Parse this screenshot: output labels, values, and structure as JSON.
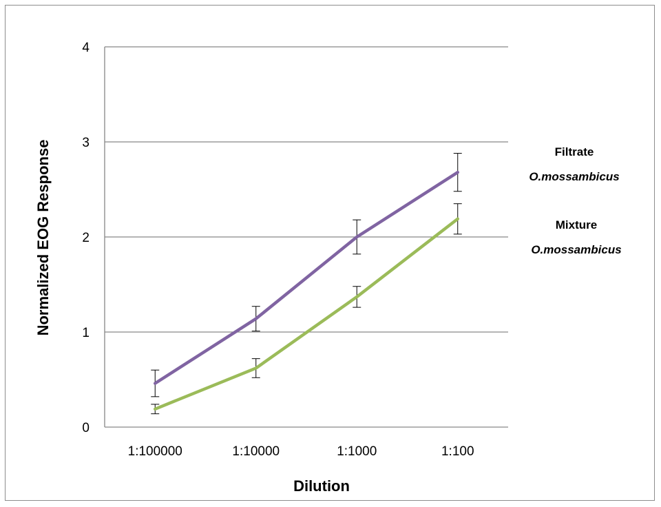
{
  "chart_data": {
    "type": "line",
    "title": "",
    "xlabel": "Dilution",
    "ylabel": "Normalized EOG Response",
    "categories": [
      "1:100000",
      "1:10000",
      "1:1000",
      "1:100"
    ],
    "ylim": [
      0,
      4
    ],
    "yticks": [
      "0",
      "1",
      "2",
      "3",
      "4"
    ],
    "grid": true,
    "legend": "none",
    "series": [
      {
        "name": "Filtrate O.mossambicus",
        "label_lines": [
          "Filtrate",
          "O.mossambicus"
        ],
        "color": "#8064a2",
        "values": [
          0.46,
          1.14,
          2.0,
          2.68
        ],
        "errors": [
          0.14,
          0.13,
          0.18,
          0.2
        ]
      },
      {
        "name": "Mixture O.mossambicus",
        "label_lines": [
          "Mixture",
          "O.mossambicus"
        ],
        "color": "#9bbb59",
        "values": [
          0.19,
          0.62,
          1.37,
          2.19
        ],
        "errors": [
          0.05,
          0.1,
          0.11,
          0.16
        ]
      }
    ]
  }
}
